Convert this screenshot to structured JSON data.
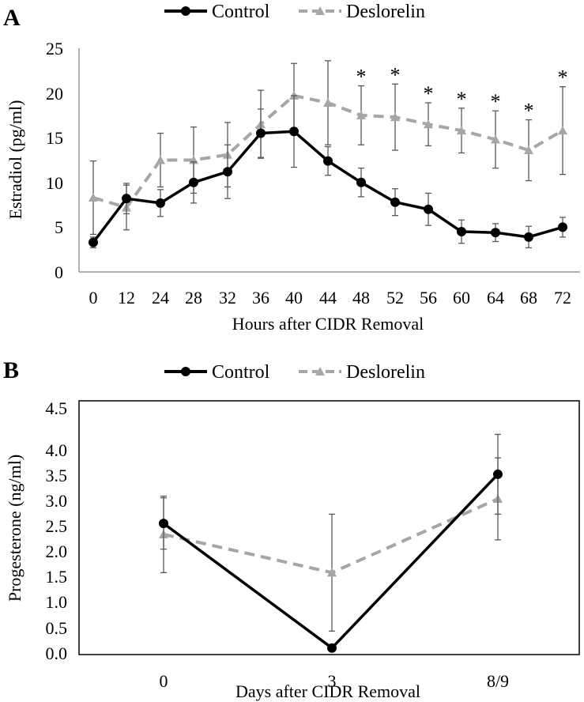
{
  "colors": {
    "control": "#000000",
    "deslorelin": "#A6A6A6",
    "error_bar": "#595959",
    "axis": "#808080",
    "border": "#000000"
  },
  "chart_data": [
    {
      "panel_label": "A",
      "type": "line",
      "xlabel": "Hours after CIDR Removal",
      "ylabel": "Estradiol (pg/ml)",
      "ylim": [
        0,
        25
      ],
      "yticks": [
        "0",
        "5",
        "10",
        "15",
        "20",
        "25"
      ],
      "categories": [
        "0",
        "12",
        "24",
        "28",
        "32",
        "36",
        "40",
        "44",
        "48",
        "52",
        "56",
        "60",
        "64",
        "68",
        "72"
      ],
      "legend": {
        "position": "top",
        "entries": [
          "Control",
          "Deslorelin"
        ]
      },
      "series": [
        {
          "name": "Control",
          "marker": "circle",
          "style": "solid",
          "values": [
            3.3,
            8.2,
            7.7,
            10.0,
            11.2,
            15.5,
            15.7,
            12.4,
            10.0,
            7.8,
            7.0,
            4.5,
            4.4,
            3.9,
            5.0
          ],
          "error": [
            0.6,
            1.7,
            1.5,
            2.3,
            3.0,
            2.7,
            4.0,
            1.6,
            1.6,
            1.5,
            1.8,
            1.3,
            1.0,
            1.2,
            1.1
          ]
        },
        {
          "name": "Deslorelin",
          "marker": "triangle",
          "style": "dashed",
          "values": [
            8.3,
            7.2,
            12.5,
            12.5,
            13.1,
            16.5,
            19.7,
            18.9,
            17.5,
            17.3,
            16.5,
            15.8,
            14.8,
            13.6,
            15.8
          ],
          "error": [
            4.1,
            2.5,
            3.0,
            3.7,
            3.6,
            3.8,
            3.6,
            4.7,
            3.3,
            3.7,
            2.4,
            2.5,
            3.2,
            3.4,
            4.9
          ]
        }
      ],
      "annotations": [
        {
          "category": "48",
          "text": "*"
        },
        {
          "category": "52",
          "text": "*"
        },
        {
          "category": "56",
          "text": "*"
        },
        {
          "category": "60",
          "text": "*"
        },
        {
          "category": "64",
          "text": "*"
        },
        {
          "category": "68",
          "text": "*"
        },
        {
          "category": "72",
          "text": "*"
        }
      ]
    },
    {
      "panel_label": "B",
      "type": "line",
      "xlabel": "Days after CIDR Removal",
      "ylabel": "Progesterone (ng/ml)",
      "ylim": [
        0,
        4.5
      ],
      "yticks": [
        "0.0",
        "0.5",
        "1.0",
        "1.5",
        "2.0",
        "2.5",
        "3.0",
        "3.5",
        "4.0",
        "4.5"
      ],
      "categories": [
        "0",
        "3",
        "8/9"
      ],
      "legend": {
        "position": "top",
        "entries": [
          "Control",
          "Deslorelin"
        ]
      },
      "series": [
        {
          "name": "Control",
          "marker": "circle",
          "style": "solid",
          "values": [
            2.4,
            0.12,
            3.3
          ],
          "error": [
            0.47,
            0.0,
            0.73
          ]
        },
        {
          "name": "Deslorelin",
          "marker": "triangle",
          "style": "dashed",
          "values": [
            2.2,
            1.5,
            2.85
          ],
          "error": [
            0.7,
            1.07,
            0.75
          ]
        }
      ],
      "annotations": []
    }
  ]
}
